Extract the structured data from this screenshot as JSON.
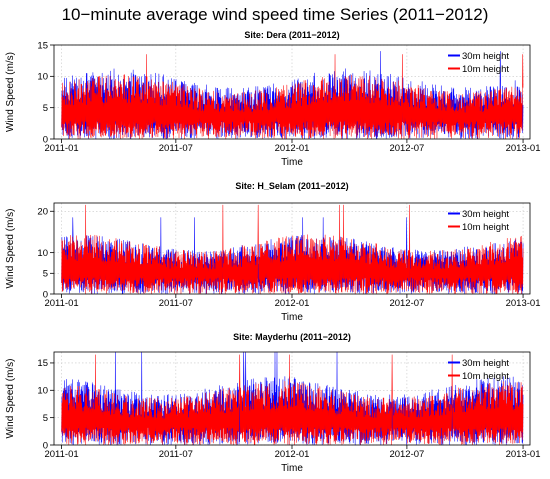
{
  "title": "10−minute average wind speed time Series (2011−2012)",
  "chart_data": [
    {
      "type": "line",
      "title": "Site: Dera (2011−2012)",
      "xlabel": "Time",
      "ylabel": "Wind Speed (m/s)",
      "xlim": [
        "2010-12-20",
        "2013-01-12"
      ],
      "ylim": [
        0,
        15
      ],
      "yticks": [
        0,
        5,
        10,
        15
      ],
      "xticks": [
        "2011-01",
        "2011-07",
        "2012-01",
        "2012-07",
        "2013-01"
      ],
      "grid": true,
      "legend_position": "top-right",
      "series": [
        {
          "name": "30m height",
          "color": "#0000ff",
          "typical_range": [
            0,
            12.5
          ],
          "peak": 14.0
        },
        {
          "name": "10m height",
          "color": "#ff0000",
          "typical_range": [
            0,
            11.5
          ],
          "peak": 13.5
        }
      ]
    },
    {
      "type": "line",
      "title": "Site: H_Selam (2011−2012)",
      "xlabel": "Time",
      "ylabel": "Wind Speed (m/s)",
      "xlim": [
        "2010-12-20",
        "2013-01-12"
      ],
      "ylim": [
        0,
        22
      ],
      "yticks": [
        0,
        5,
        10,
        20
      ],
      "xticks": [
        "2011-01",
        "2011-07",
        "2012-01",
        "2012-07",
        "2013-01"
      ],
      "grid": true,
      "legend_position": "top-right",
      "series": [
        {
          "name": "30m height",
          "color": "#0000ff",
          "typical_range": [
            0,
            16
          ],
          "peak": 18.5
        },
        {
          "name": "10m height",
          "color": "#ff0000",
          "typical_range": [
            0,
            16
          ],
          "peak": 21.5
        }
      ]
    },
    {
      "type": "line",
      "title": "Site: Mayderhu (2011−2012)",
      "xlabel": "Time",
      "ylabel": "Wind Speed (m/s)",
      "xlim": [
        "2010-12-20",
        "2013-01-12"
      ],
      "ylim": [
        0,
        17
      ],
      "yticks": [
        0,
        5,
        10,
        15
      ],
      "xticks": [
        "2011-01",
        "2011-07",
        "2012-01",
        "2012-07",
        "2013-01"
      ],
      "grid": true,
      "legend_position": "top-right",
      "series": [
        {
          "name": "30m height",
          "color": "#0000ff",
          "typical_range": [
            0,
            14
          ],
          "peak": 17.0
        },
        {
          "name": "10m height",
          "color": "#ff0000",
          "typical_range": [
            0,
            13
          ],
          "peak": 16.5
        }
      ]
    }
  ]
}
